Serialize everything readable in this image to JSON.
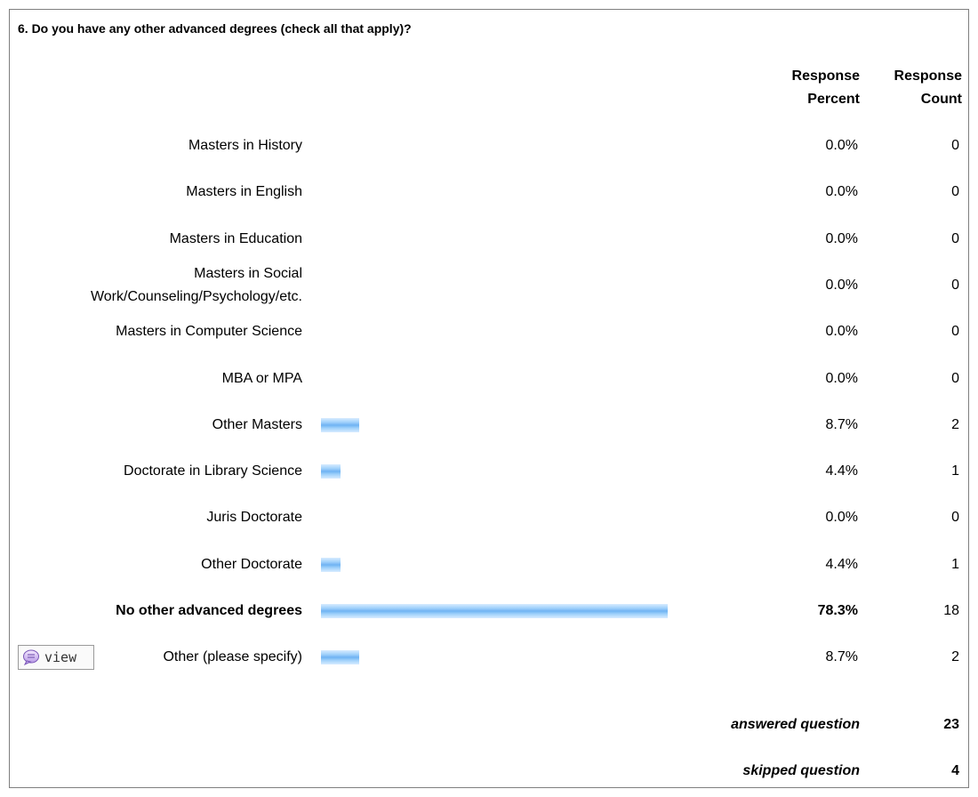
{
  "question": "6. Do you have any other advanced degrees (check all that apply)?",
  "headers": {
    "percent_line1": "Response",
    "percent_line2": "Percent",
    "count_line1": "Response",
    "count_line2": "Count"
  },
  "bar_color": "#6fb3f3",
  "chart_data": {
    "type": "bar",
    "orientation": "horizontal",
    "categories": [
      "Masters in History",
      "Masters in English",
      "Masters in Education",
      "Masters in Social Work/Counseling/Psychology/etc.",
      "Masters in Computer Science",
      "MBA or MPA",
      "Other Masters",
      "Doctorate in Library Science",
      "Juris Doctorate",
      "Other Doctorate",
      "No other advanced degrees",
      "Other (please specify)"
    ],
    "series": [
      {
        "name": "Response Percent",
        "values": [
          0.0,
          0.0,
          0.0,
          0.0,
          0.0,
          0.0,
          8.7,
          4.4,
          0.0,
          4.4,
          78.3,
          8.7
        ]
      },
      {
        "name": "Response Count",
        "values": [
          0,
          0,
          0,
          0,
          0,
          0,
          2,
          1,
          0,
          1,
          18,
          2
        ]
      }
    ],
    "xlim": [
      0,
      100
    ]
  },
  "rows": [
    {
      "label_lines": [
        "Masters in History"
      ],
      "percent": "0.0%",
      "count": "0",
      "bold": false
    },
    {
      "label_lines": [
        "Masters in English"
      ],
      "percent": "0.0%",
      "count": "0",
      "bold": false
    },
    {
      "label_lines": [
        "Masters in Education"
      ],
      "percent": "0.0%",
      "count": "0",
      "bold": false
    },
    {
      "label_lines": [
        "Masters in Social",
        "Work/Counseling/Psychology/etc."
      ],
      "percent": "0.0%",
      "count": "0",
      "bold": false
    },
    {
      "label_lines": [
        "Masters in Computer Science"
      ],
      "percent": "0.0%",
      "count": "0",
      "bold": false
    },
    {
      "label_lines": [
        "MBA or MPA"
      ],
      "percent": "0.0%",
      "count": "0",
      "bold": false
    },
    {
      "label_lines": [
        "Other Masters"
      ],
      "percent": "8.7%",
      "count": "2",
      "bold": false
    },
    {
      "label_lines": [
        "Doctorate in Library Science"
      ],
      "percent": "4.4%",
      "count": "1",
      "bold": false
    },
    {
      "label_lines": [
        "Juris Doctorate"
      ],
      "percent": "0.0%",
      "count": "0",
      "bold": false
    },
    {
      "label_lines": [
        "Other Doctorate"
      ],
      "percent": "4.4%",
      "count": "1",
      "bold": false
    },
    {
      "label_lines": [
        "No other advanced degrees"
      ],
      "percent": "78.3%",
      "count": "18",
      "bold": true
    },
    {
      "label_lines": [
        "Other (please specify)"
      ],
      "percent": "8.7%",
      "count": "2",
      "bold": false,
      "has_view": true
    }
  ],
  "view_button": {
    "label": "view",
    "icon": "speech-bubble-icon"
  },
  "summary": {
    "answered_label": "answered question",
    "answered_value": "23",
    "skipped_label": "skipped question",
    "skipped_value": "4"
  }
}
